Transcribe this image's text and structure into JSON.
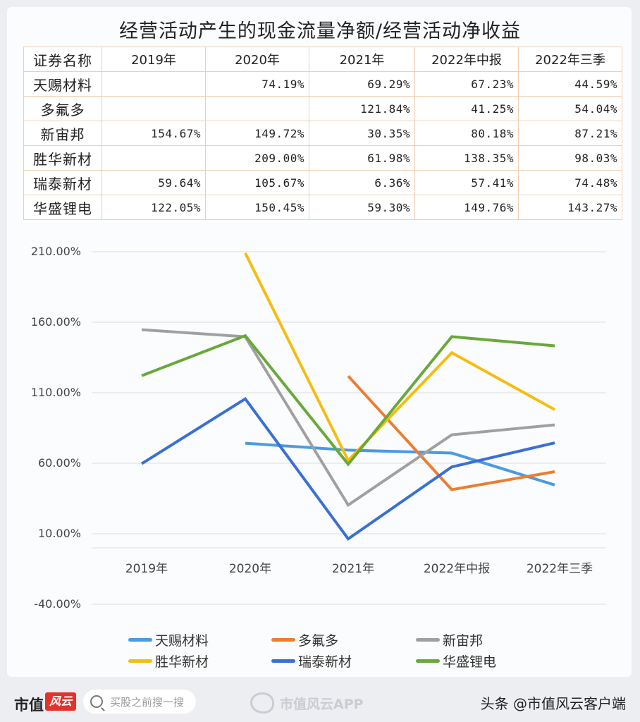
{
  "title": "经营活动产生的现金流量净额/经营活动净收益",
  "table": {
    "headers": [
      "证券名称",
      "2019年",
      "2020年",
      "2021年",
      "2022年中报",
      "2022年三季"
    ],
    "rows": [
      {
        "name": "天赐材料",
        "values": [
          "",
          "74.19%",
          "69.29%",
          "67.23%",
          "44.59%"
        ]
      },
      {
        "name": "多氟多",
        "values": [
          "",
          "",
          "121.84%",
          "41.25%",
          "54.04%"
        ]
      },
      {
        "name": "新宙邦",
        "values": [
          "154.67%",
          "149.72%",
          "30.35%",
          "80.18%",
          "87.21%"
        ]
      },
      {
        "name": "胜华新材",
        "values": [
          "",
          "209.00%",
          "61.98%",
          "138.35%",
          "98.03%"
        ]
      },
      {
        "name": "瑞泰新材",
        "values": [
          "59.64%",
          "105.67%",
          "6.36%",
          "57.41%",
          "74.48%"
        ]
      },
      {
        "name": "华盛锂电",
        "values": [
          "122.05%",
          "150.45%",
          "59.30%",
          "149.76%",
          "143.27%"
        ]
      }
    ]
  },
  "chart_data": {
    "type": "line",
    "title": "经营活动产生的现金流量净额/经营活动净收益",
    "categories": [
      "2019年",
      "2020年",
      "2021年",
      "2022年中报",
      "2022年三季"
    ],
    "series": [
      {
        "name": "天赐材料",
        "color": "#4a9be0",
        "values": [
          null,
          74.19,
          69.29,
          67.23,
          44.59
        ]
      },
      {
        "name": "多氟多",
        "color": "#ed7d31",
        "values": [
          null,
          null,
          121.84,
          41.25,
          54.04
        ]
      },
      {
        "name": "新宙邦",
        "color": "#a0a0a0",
        "values": [
          154.67,
          149.72,
          30.35,
          80.18,
          87.21
        ]
      },
      {
        "name": "胜华新材",
        "color": "#f5bd0e",
        "values": [
          null,
          209.0,
          61.98,
          138.35,
          98.03
        ]
      },
      {
        "name": "瑞泰新材",
        "color": "#3a6fd4",
        "values": [
          59.64,
          105.67,
          6.36,
          57.41,
          74.48
        ]
      },
      {
        "name": "华盛锂电",
        "color": "#69a83a",
        "values": [
          122.05,
          150.45,
          59.3,
          149.76,
          143.27
        ]
      }
    ],
    "yticks": [
      "210.00%",
      "160.00%",
      "110.00%",
      "60.00%",
      "10.00%",
      "-40.00%"
    ],
    "ylim": [
      -40,
      210
    ],
    "xlabel": "",
    "ylabel": "",
    "grid": true,
    "legend_position": "bottom"
  },
  "footer": {
    "brand": "市值",
    "brand_badge": "风云",
    "search_placeholder": "买股之前搜一搜",
    "watermark": "市值风云APP",
    "credit": "头条 @市值风云客户端"
  }
}
